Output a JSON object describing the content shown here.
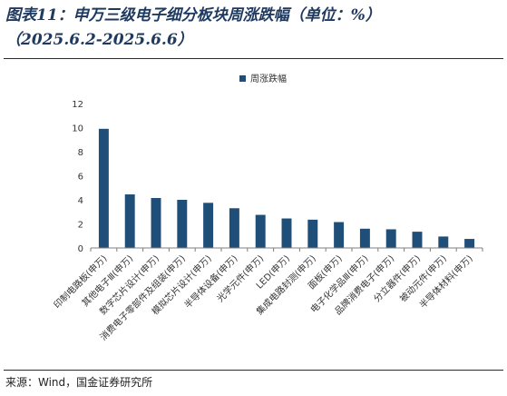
{
  "title_line1": "图表11：申万三级电子细分板块周涨跌幅（单位：%）",
  "title_line2": "（2025.6.2-2025.6.6）",
  "source": "来源：Wind，国金证券研究所",
  "colors": {
    "bar": "#1f4e79",
    "axis": "#7f7f7f",
    "text": "#333333",
    "title": "#1f3a60"
  },
  "chart_data": {
    "type": "bar",
    "legend": {
      "label": "周涨跌幅",
      "position": "top-center"
    },
    "categories": [
      "印制电路板(申万)",
      "其他电子Ⅲ(申万)",
      "数字芯片设计(申万)",
      "消费电子零部件及组装(申万)",
      "模拟芯片设计(申万)",
      "半导体设备(申万)",
      "光学元件(申万)",
      "LED(申万)",
      "集成电路封测(申万)",
      "面板(申万)",
      "电子化学品Ⅲ(申万)",
      "品牌消费电子(申万)",
      "分立器件(申万)",
      "被动元件(申万)",
      "半导体材料(申万)"
    ],
    "values": [
      9.9,
      4.45,
      4.15,
      4.0,
      3.75,
      3.3,
      2.75,
      2.45,
      2.35,
      2.15,
      1.6,
      1.55,
      1.35,
      0.95,
      0.75
    ],
    "ylim": [
      0,
      12
    ],
    "yticks": [
      0,
      2,
      4,
      6,
      8,
      10,
      12
    ],
    "grid": false
  }
}
